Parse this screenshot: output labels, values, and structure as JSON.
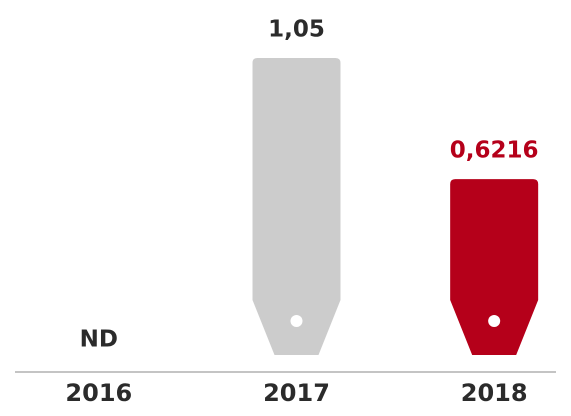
{
  "chart_data": {
    "type": "bar",
    "categories": [
      "2016",
      "2017",
      "2018"
    ],
    "values": [
      null,
      1.05,
      0.6216
    ],
    "value_labels": [
      "ND",
      "1,05",
      "0,6216"
    ],
    "colors": [
      "#cccccc",
      "#cccccc",
      "#b5001a"
    ],
    "value_label_colors": [
      "#2b2b2b",
      "#2b2b2b",
      "#b5001a"
    ]
  }
}
